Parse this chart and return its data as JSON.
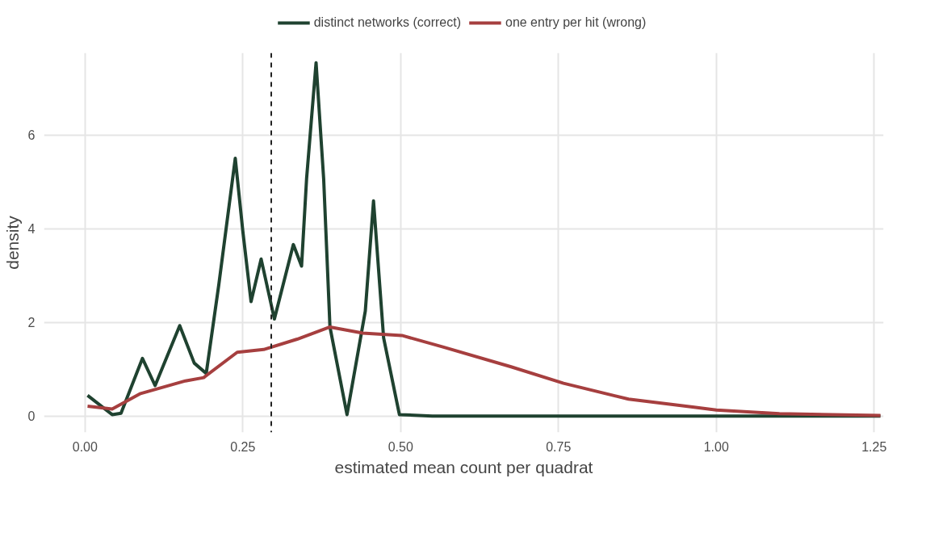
{
  "chart_data": {
    "type": "line",
    "xlabel": "estimated mean count per quadrat",
    "ylabel": "density",
    "xlim": [
      -0.065,
      1.265
    ],
    "ylim": [
      -0.35,
      7.75
    ],
    "xticks": [
      {
        "value": 0,
        "label": "0.00"
      },
      {
        "value": 0.25,
        "label": "0.25"
      },
      {
        "value": 0.5,
        "label": "0.50"
      },
      {
        "value": 0.75,
        "label": "0.75"
      },
      {
        "value": 1,
        "label": "1.00"
      },
      {
        "value": 1.25,
        "label": "1.25"
      }
    ],
    "yticks": [
      0,
      2,
      4,
      6
    ],
    "grid": true,
    "legend": "top",
    "line_style": "solid",
    "ref_lines": [
      {
        "axis": "x",
        "value": 0.295,
        "label": null,
        "color": "#222222",
        "line_style": "dashed"
      }
    ],
    "series": [
      {
        "name": "distinct networks (correct)",
        "color": "#1f4230",
        "x": [
          0.004,
          0.043,
          0.057,
          0.091,
          0.111,
          0.15,
          0.173,
          0.192,
          0.212,
          0.238,
          0.25,
          0.263,
          0.279,
          0.3,
          0.33,
          0.343,
          0.351,
          0.366,
          0.378,
          0.388,
          0.415,
          0.444,
          0.457,
          0.473,
          0.498,
          0.55,
          0.75,
          1.0,
          1.26
        ],
        "values": [
          0.44,
          0.03,
          0.06,
          1.23,
          0.65,
          1.93,
          1.13,
          0.91,
          2.81,
          5.5,
          3.94,
          2.44,
          3.35,
          2.07,
          3.66,
          3.2,
          5.07,
          7.54,
          5.07,
          1.9,
          0.03,
          2.24,
          4.59,
          1.67,
          0.03,
          0,
          0,
          0,
          0
        ]
      },
      {
        "name": "one entry per hit (wrong)",
        "color": "#a63f3f",
        "x": [
          0.004,
          0.043,
          0.088,
          0.159,
          0.188,
          0.241,
          0.283,
          0.336,
          0.388,
          0.44,
          0.502,
          0.568,
          0.675,
          0.758,
          0.861,
          0.965,
          1.0,
          1.1,
          1.26
        ],
        "values": [
          0.21,
          0.15,
          0.48,
          0.75,
          0.82,
          1.36,
          1.42,
          1.64,
          1.9,
          1.77,
          1.72,
          1.47,
          1.05,
          0.7,
          0.36,
          0.19,
          0.13,
          0.05,
          0.01
        ]
      }
    ]
  }
}
